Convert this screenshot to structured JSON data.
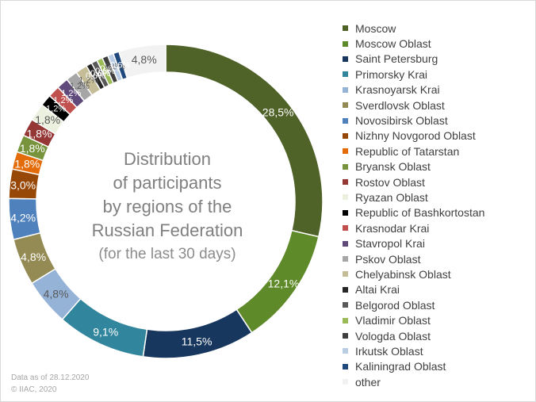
{
  "chart_data": {
    "type": "pie",
    "variant": "donut",
    "title_lines": [
      "Distribution",
      "of participants",
      "by regions of the",
      "Russian Federation"
    ],
    "subtitle": "(for the last 30 days)",
    "legend_position": "right",
    "series": [
      {
        "name": "Moscow",
        "value": 28.5,
        "label": "28,5%",
        "color": "#4f6228"
      },
      {
        "name": "Moscow Oblast",
        "value": 12.1,
        "label": "12,1%",
        "color": "#5f8a2a"
      },
      {
        "name": "Saint Petersburg",
        "value": 11.5,
        "label": "11,5%",
        "color": "#17375e"
      },
      {
        "name": "Primorsky Krai",
        "value": 9.1,
        "label": "9,1%",
        "color": "#31859c"
      },
      {
        "name": "Krasnoyarsk Krai",
        "value": 4.8,
        "label": "4,8%",
        "color": "#95b3d7"
      },
      {
        "name": "Sverdlovsk Oblast",
        "value": 4.8,
        "label": "4,8%",
        "color": "#948a54"
      },
      {
        "name": "Novosibirsk Oblast",
        "value": 4.2,
        "label": "4,2%",
        "color": "#4f81bd"
      },
      {
        "name": "Nizhny Novgorod Oblast",
        "value": 3.0,
        "label": "3,0%",
        "color": "#974806"
      },
      {
        "name": "Republic of Tatarstan",
        "value": 1.8,
        "label": "1,8%",
        "color": "#e36c09"
      },
      {
        "name": "Bryansk Oblast",
        "value": 1.8,
        "label": "1,8%",
        "color": "#77933c"
      },
      {
        "name": "Rostov Oblast",
        "value": 1.8,
        "label": "1,8%",
        "color": "#953735"
      },
      {
        "name": "Ryazan Oblast",
        "value": 1.8,
        "label": "1,8%",
        "color": "#ebf1de"
      },
      {
        "name": "Republic of Bashkortostan",
        "value": 1.2,
        "label": "1,2%",
        "color": "#000000"
      },
      {
        "name": "Krasnodar Krai",
        "value": 1.2,
        "label": "1,2%",
        "color": "#c0504d"
      },
      {
        "name": "Stavropol Krai",
        "value": 1.2,
        "label": "1,2%",
        "color": "#604a7b"
      },
      {
        "name": "Pskov Oblast",
        "value": 1.2,
        "label": "1,2%",
        "color": "#a6a6a6"
      },
      {
        "name": "Chelyabinsk Oblast",
        "value": 1.2,
        "label": "1,2%",
        "color": "#c4bd97"
      },
      {
        "name": "Altai Krai",
        "value": 0.6,
        "label": "0,6%",
        "color": "#262626"
      },
      {
        "name": "Belgorod Oblast",
        "value": 0.6,
        "label": "0,6%",
        "color": "#595959"
      },
      {
        "name": "Vladimir Oblast",
        "value": 0.6,
        "label": "0,6%",
        "color": "#9bbb59"
      },
      {
        "name": "Vologda Oblast",
        "value": 0.6,
        "label": "0,6%",
        "color": "#3f3f3f"
      },
      {
        "name": "Irkutsk Oblast",
        "value": 0.6,
        "label": "0,6%",
        "color": "#b9cde5"
      },
      {
        "name": "Kaliningrad Oblast",
        "value": 0.6,
        "label": "0,6%",
        "color": "#1f497d"
      },
      {
        "name": "other",
        "value": 4.8,
        "label": "4,8%",
        "color": "#f2f2f2"
      }
    ]
  },
  "footnote": {
    "date_line": "Data as of 28.12.2020",
    "copyright": "© IIAC, 2020"
  }
}
